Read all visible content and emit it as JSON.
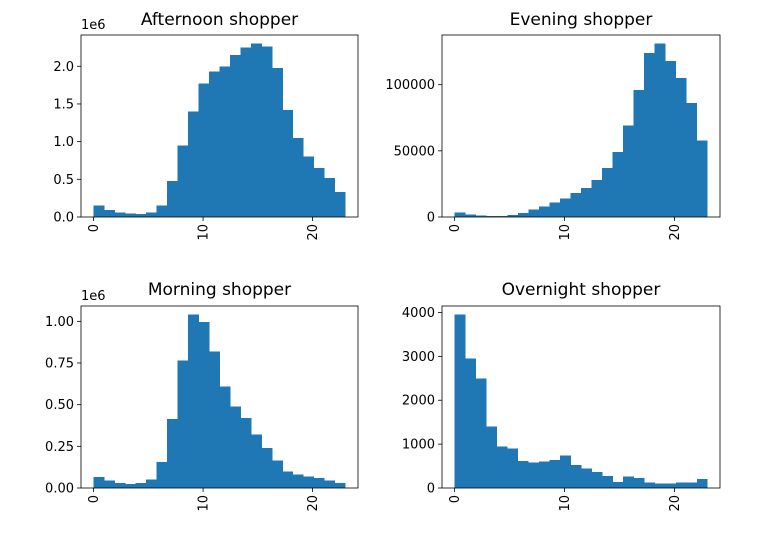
{
  "chart_data": [
    {
      "type": "bar",
      "title": "Afternoon shopper",
      "offset_label": "1e6",
      "x": [
        0,
        1,
        2,
        3,
        4,
        5,
        6,
        7,
        8,
        9,
        10,
        11,
        12,
        13,
        14,
        15,
        16,
        17,
        18,
        19,
        20,
        21,
        22,
        23
      ],
      "values": [
        0.155,
        0.09,
        0.06,
        0.045,
        0.04,
        0.06,
        0.155,
        0.48,
        0.95,
        1.4,
        1.77,
        1.93,
        2.0,
        2.15,
        2.25,
        2.3,
        2.26,
        1.98,
        1.42,
        1.05,
        0.8,
        0.65,
        0.52,
        0.33
      ],
      "xlim": [
        -1.15,
        24.15
      ],
      "ylim": [
        0,
        2.415
      ],
      "xticks": [
        0,
        10,
        20
      ],
      "xtick_labels": [
        "0",
        "10",
        "20"
      ],
      "yticks": [
        0.0,
        0.5,
        1.0,
        1.5,
        2.0
      ],
      "ytick_labels": [
        "0.0",
        "0.5",
        "1.0",
        "1.5",
        "2.0"
      ],
      "color": "#1f77b4"
    },
    {
      "type": "bar",
      "title": "Evening shopper",
      "offset_label": "",
      "x": [
        0,
        1,
        2,
        3,
        4,
        5,
        6,
        7,
        8,
        9,
        10,
        11,
        12,
        13,
        14,
        15,
        16,
        17,
        18,
        19,
        20,
        21,
        22,
        23
      ],
      "values": [
        3500,
        2000,
        1000,
        800,
        800,
        1500,
        3000,
        5500,
        8000,
        11000,
        14000,
        18000,
        22000,
        28000,
        37000,
        49000,
        69000,
        96000,
        124000,
        131000,
        118000,
        105000,
        86000,
        58000
      ],
      "xlim": [
        -1.15,
        24.15
      ],
      "ylim": [
        0,
        137550
      ],
      "xticks": [
        0,
        10,
        20
      ],
      "xtick_labels": [
        "0",
        "10",
        "20"
      ],
      "yticks": [
        0,
        50000,
        100000
      ],
      "ytick_labels": [
        "0",
        "50000",
        "100000"
      ],
      "color": "#1f77b4"
    },
    {
      "type": "bar",
      "title": "Morning shopper",
      "offset_label": "1e6",
      "x": [
        0,
        1,
        2,
        3,
        4,
        5,
        6,
        7,
        8,
        9,
        10,
        11,
        12,
        13,
        14,
        15,
        16,
        17,
        18,
        19,
        20,
        21,
        22,
        23
      ],
      "values": [
        0.065,
        0.045,
        0.03,
        0.025,
        0.03,
        0.05,
        0.155,
        0.415,
        0.765,
        1.04,
        0.995,
        0.82,
        0.61,
        0.49,
        0.42,
        0.32,
        0.24,
        0.165,
        0.1,
        0.08,
        0.07,
        0.06,
        0.045,
        0.03
      ],
      "xlim": [
        -1.15,
        24.15
      ],
      "ylim": [
        0,
        1.092
      ],
      "xticks": [
        0,
        10,
        20
      ],
      "xtick_labels": [
        "0",
        "10",
        "20"
      ],
      "yticks": [
        0.0,
        0.25,
        0.5,
        0.75,
        1.0
      ],
      "ytick_labels": [
        "0.00",
        "0.25",
        "0.50",
        "0.75",
        "1.00"
      ],
      "color": "#1f77b4"
    },
    {
      "type": "bar",
      "title": "Overnight shopper",
      "offset_label": "",
      "x": [
        0,
        1,
        2,
        3,
        4,
        5,
        6,
        7,
        8,
        9,
        10,
        11,
        12,
        13,
        14,
        15,
        16,
        17,
        18,
        19,
        20,
        21,
        22,
        23
      ],
      "values": [
        3950,
        2950,
        2500,
        1400,
        950,
        900,
        620,
        580,
        600,
        640,
        740,
        520,
        450,
        360,
        270,
        140,
        260,
        230,
        130,
        100,
        100,
        120,
        120,
        200
      ],
      "xlim": [
        -1.15,
        24.15
      ],
      "ylim": [
        0,
        4147.5
      ],
      "xticks": [
        0,
        10,
        20
      ],
      "xtick_labels": [
        "0",
        "10",
        "20"
      ],
      "yticks": [
        0,
        1000,
        2000,
        3000,
        4000
      ],
      "ytick_labels": [
        "0",
        "1000",
        "2000",
        "3000",
        "4000"
      ],
      "color": "#1f77b4"
    }
  ]
}
